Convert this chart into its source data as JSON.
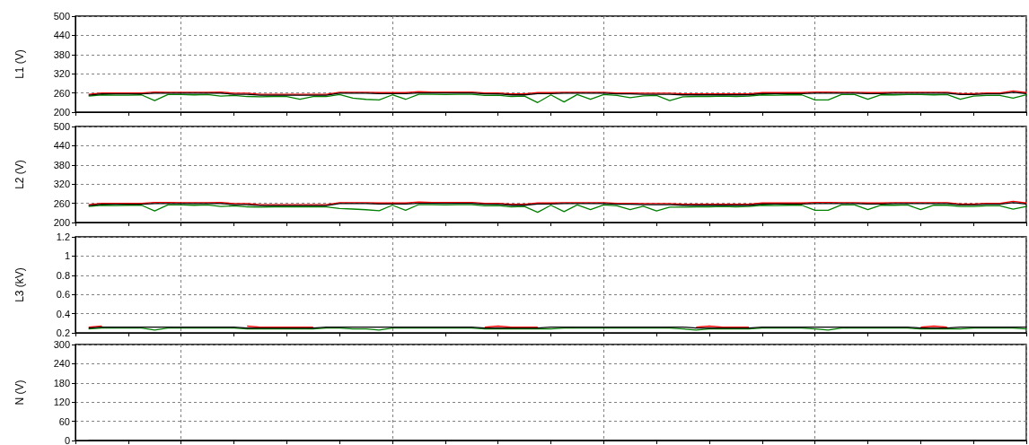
{
  "chart_data": [
    {
      "type": "line",
      "ylabel": "L1 (V)",
      "ylim": [
        200,
        500
      ],
      "yticks": [
        200,
        260,
        320,
        380,
        440,
        500
      ],
      "grid": true,
      "tick_labels": "y",
      "marker": "none",
      "categories": [
        null,
        null,
        null,
        null,
        null,
        null,
        null,
        null,
        null,
        null,
        null,
        null,
        null,
        null,
        null,
        null,
        null,
        null,
        null,
        null,
        null,
        null,
        null,
        null,
        null,
        null,
        null,
        null,
        null,
        null,
        null,
        null,
        null,
        null,
        null,
        null,
        null,
        null,
        null,
        null,
        null,
        null,
        null,
        null,
        null,
        null,
        null,
        null,
        null,
        null,
        null,
        null,
        null,
        null,
        null,
        null,
        null,
        null,
        null,
        null,
        null,
        null,
        null,
        null,
        null,
        null,
        null,
        null,
        null,
        null,
        null,
        null,
        null
      ],
      "series": [
        {
          "color": "#008000",
          "values": [
            null,
            250,
            254,
            253,
            253,
            254,
            236,
            255,
            255,
            254,
            255,
            250,
            252,
            249,
            248,
            249,
            249,
            240,
            249,
            249,
            255,
            244,
            240,
            238,
            254,
            240,
            256,
            256,
            255,
            256,
            256,
            252,
            253,
            249,
            250,
            230,
            254,
            232,
            255,
            240,
            255,
            252,
            245,
            251,
            252,
            236,
            248,
            249,
            249,
            250,
            249,
            250,
            254,
            253,
            254,
            254,
            238,
            238,
            255,
            255,
            240,
            254,
            254,
            255,
            255,
            254,
            255,
            240,
            250,
            252,
            252,
            244,
            254
          ]
        },
        {
          "color": "#ff0000",
          "values": [
            null,
            256,
            260,
            260,
            260,
            260,
            263,
            262,
            262,
            262,
            262,
            263,
            259,
            259,
            256,
            256,
            256,
            256,
            256,
            256,
            262,
            262,
            262,
            261,
            261,
            261,
            264,
            263,
            263,
            263,
            263,
            260,
            260,
            257,
            257,
            261,
            261,
            262,
            262,
            262,
            262,
            260,
            260,
            259,
            259,
            259,
            257,
            257,
            257,
            257,
            257,
            257,
            261,
            261,
            261,
            261,
            263,
            263,
            262,
            262,
            261,
            261,
            262,
            262,
            262,
            262,
            262,
            258,
            258,
            260,
            260,
            266,
            261
          ]
        },
        {
          "color": "#000000",
          "values": [
            null,
            253,
            257,
            257,
            257,
            257,
            259,
            259,
            259,
            259,
            259,
            259,
            256,
            256,
            253,
            253,
            253,
            253,
            253,
            253,
            259,
            259,
            259,
            258,
            258,
            258,
            260,
            260,
            260,
            260,
            260,
            257,
            257,
            254,
            254,
            258,
            258,
            259,
            259,
            259,
            259,
            257,
            257,
            256,
            256,
            256,
            254,
            254,
            254,
            254,
            254,
            254,
            258,
            258,
            258,
            258,
            259,
            259,
            259,
            259,
            258,
            258,
            259,
            259,
            259,
            259,
            259,
            255,
            255,
            257,
            257,
            262,
            258
          ]
        }
      ]
    },
    {
      "type": "line",
      "ylabel": "L2 (V)",
      "ylim": [
        200,
        500
      ],
      "yticks": [
        200,
        260,
        320,
        380,
        440,
        500
      ],
      "grid": true,
      "tick_labels": "y",
      "marker": "none",
      "categories": [
        null,
        null,
        null,
        null,
        null,
        null,
        null,
        null,
        null,
        null,
        null,
        null,
        null,
        null,
        null,
        null,
        null,
        null,
        null,
        null,
        null,
        null,
        null,
        null,
        null,
        null,
        null,
        null,
        null,
        null,
        null,
        null,
        null,
        null,
        null,
        null,
        null,
        null,
        null,
        null,
        null,
        null,
        null,
        null,
        null,
        null,
        null,
        null,
        null,
        null,
        null,
        null,
        null,
        null,
        null,
        null,
        null,
        null,
        null,
        null,
        null,
        null,
        null,
        null,
        null,
        null,
        null,
        null,
        null,
        null,
        null,
        null,
        null
      ],
      "series": [
        {
          "color": "#008000",
          "values": [
            null,
            250,
            254,
            253,
            254,
            254,
            236,
            255,
            255,
            254,
            255,
            250,
            252,
            249,
            248,
            249,
            249,
            249,
            249,
            249,
            244,
            242,
            240,
            237,
            254,
            238,
            256,
            256,
            255,
            256,
            256,
            252,
            253,
            249,
            250,
            232,
            254,
            234,
            255,
            240,
            255,
            252,
            240,
            251,
            236,
            248,
            248,
            249,
            249,
            250,
            249,
            250,
            254,
            253,
            254,
            254,
            238,
            238,
            255,
            255,
            240,
            254,
            254,
            255,
            240,
            254,
            254,
            250,
            250,
            252,
            252,
            242,
            250
          ]
        },
        {
          "color": "#ff0000",
          "values": [
            null,
            256,
            260,
            260,
            260,
            260,
            263,
            263,
            262,
            262,
            262,
            263,
            259,
            259,
            256,
            256,
            256,
            256,
            256,
            256,
            262,
            262,
            262,
            261,
            261,
            261,
            264,
            263,
            263,
            263,
            263,
            260,
            260,
            257,
            257,
            261,
            261,
            262,
            262,
            262,
            262,
            260,
            260,
            259,
            259,
            259,
            257,
            257,
            257,
            257,
            257,
            257,
            261,
            261,
            261,
            261,
            263,
            263,
            262,
            262,
            261,
            261,
            262,
            262,
            262,
            262,
            262,
            258,
            258,
            260,
            260,
            266,
            261
          ]
        },
        {
          "color": "#000000",
          "values": [
            null,
            253,
            257,
            257,
            257,
            257,
            259,
            259,
            259,
            259,
            259,
            259,
            256,
            256,
            253,
            253,
            253,
            253,
            253,
            253,
            259,
            259,
            259,
            258,
            258,
            258,
            260,
            260,
            260,
            260,
            260,
            257,
            257,
            254,
            254,
            258,
            258,
            259,
            259,
            259,
            259,
            257,
            257,
            256,
            256,
            256,
            254,
            254,
            254,
            254,
            254,
            254,
            258,
            258,
            258,
            258,
            259,
            259,
            259,
            259,
            258,
            258,
            259,
            259,
            259,
            259,
            259,
            255,
            255,
            257,
            257,
            262,
            258
          ]
        }
      ]
    },
    {
      "type": "line",
      "ylabel": "L3 (kV)",
      "ylim": [
        0.2,
        1.2
      ],
      "yticks": [
        0.2,
        0.4,
        0.6,
        0.8,
        1,
        1.2
      ],
      "grid": true,
      "tick_labels": "y",
      "marker": "none",
      "categories": [
        null,
        null,
        null,
        null,
        null,
        null,
        null,
        null,
        null,
        null,
        null,
        null,
        null,
        null,
        null,
        null,
        null,
        null,
        null,
        null,
        null,
        null,
        null,
        null,
        null,
        null,
        null,
        null,
        null,
        null,
        null,
        null,
        null,
        null,
        null,
        null,
        null,
        null,
        null,
        null,
        null,
        null,
        null,
        null,
        null,
        null,
        null,
        null,
        null,
        null,
        null,
        null,
        null,
        null,
        null,
        null,
        null,
        null,
        null,
        null,
        null,
        null,
        null,
        null,
        null,
        null,
        null,
        null,
        null,
        null,
        null,
        null,
        null
      ],
      "series": [
        {
          "color": "#008000",
          "values": [
            null,
            0.24,
            0.25,
            0.25,
            0.25,
            0.25,
            0.23,
            0.25,
            0.25,
            0.25,
            0.25,
            0.25,
            0.25,
            0.24,
            0.24,
            0.24,
            0.24,
            0.24,
            0.24,
            0.25,
            0.25,
            0.24,
            0.24,
            0.23,
            0.25,
            0.25,
            0.25,
            0.25,
            0.25,
            0.25,
            0.25,
            0.24,
            0.24,
            0.24,
            0.24,
            0.24,
            0.24,
            0.25,
            0.25,
            0.25,
            0.25,
            0.25,
            0.25,
            0.25,
            0.25,
            0.25,
            0.24,
            0.23,
            0.24,
            0.24,
            0.24,
            0.24,
            0.25,
            0.25,
            0.25,
            0.25,
            0.24,
            0.23,
            0.25,
            0.25,
            0.25,
            0.25,
            0.25,
            0.25,
            0.24,
            0.24,
            0.24,
            0.24,
            0.25,
            0.25,
            0.25,
            0.25,
            0.24
          ]
        },
        {
          "color": "#ff0000",
          "values": [
            null,
            0.26,
            0.27,
            null,
            null,
            null,
            null,
            null,
            null,
            null,
            null,
            null,
            null,
            0.27,
            0.26,
            0.26,
            0.26,
            0.26,
            0.26,
            null,
            null,
            null,
            null,
            null,
            null,
            null,
            null,
            null,
            null,
            null,
            null,
            0.26,
            0.27,
            0.26,
            0.26,
            0.26,
            null,
            null,
            null,
            null,
            null,
            null,
            null,
            null,
            null,
            null,
            null,
            0.26,
            0.27,
            0.26,
            0.26,
            0.26,
            null,
            null,
            null,
            null,
            null,
            null,
            null,
            null,
            null,
            null,
            null,
            null,
            0.26,
            0.27,
            0.26,
            null,
            null,
            null,
            null,
            null,
            null
          ]
        },
        {
          "color": "#000000",
          "values": [
            null,
            0.25,
            0.26,
            0.26,
            0.26,
            0.26,
            0.26,
            0.26,
            0.26,
            0.26,
            0.26,
            0.26,
            0.26,
            0.25,
            0.25,
            0.25,
            0.25,
            0.25,
            0.25,
            0.26,
            0.26,
            0.26,
            0.26,
            0.26,
            0.26,
            0.26,
            0.26,
            0.26,
            0.26,
            0.26,
            0.26,
            0.25,
            0.25,
            0.25,
            0.25,
            0.25,
            0.26,
            0.26,
            0.26,
            0.26,
            0.26,
            0.26,
            0.26,
            0.26,
            0.26,
            0.26,
            0.26,
            0.25,
            0.25,
            0.25,
            0.25,
            0.25,
            0.26,
            0.26,
            0.26,
            0.26,
            0.26,
            0.26,
            0.26,
            0.26,
            0.26,
            0.26,
            0.26,
            0.26,
            0.25,
            0.25,
            0.25,
            0.26,
            0.26,
            0.26,
            0.26,
            0.26,
            0.26
          ]
        }
      ]
    },
    {
      "type": "line",
      "ylabel": "N (V)",
      "ylim": [
        0,
        300
      ],
      "yticks": [
        0,
        60,
        120,
        180,
        240,
        300
      ],
      "grid": true,
      "tick_labels": "y",
      "marker": "none",
      "categories": [
        null,
        null,
        null,
        null,
        null,
        null,
        null,
        null,
        null,
        null,
        null,
        null,
        null,
        null,
        null,
        null,
        null,
        null,
        null,
        null,
        null,
        null,
        null,
        null,
        null,
        null,
        null,
        null,
        null,
        null,
        null,
        null,
        null,
        null,
        null,
        null,
        null,
        null,
        null,
        null,
        null,
        null,
        null,
        null,
        null,
        null,
        null,
        null,
        null,
        null,
        null,
        null,
        null,
        null,
        null,
        null,
        null,
        null,
        null,
        null,
        null,
        null,
        null,
        null,
        null,
        null,
        null,
        null,
        null,
        null,
        null,
        null,
        null
      ],
      "series": [
        {
          "color": "#000000",
          "values": [
            null,
            0,
            0,
            0,
            0,
            0,
            0,
            0,
            0,
            0,
            0,
            0,
            0,
            0,
            0,
            0,
            0,
            0,
            0,
            0,
            0,
            0,
            0,
            0,
            0,
            0,
            0,
            0,
            0,
            0,
            0,
            0,
            0,
            0,
            0,
            0,
            0,
            0,
            0,
            0,
            0,
            0,
            0,
            0,
            0,
            0,
            0,
            0,
            0,
            0,
            0,
            0,
            0,
            0,
            0,
            0,
            0,
            0,
            0,
            0,
            0,
            0,
            0,
            0,
            0,
            0,
            0,
            0,
            0,
            0,
            0,
            0,
            0
          ]
        }
      ]
    }
  ]
}
